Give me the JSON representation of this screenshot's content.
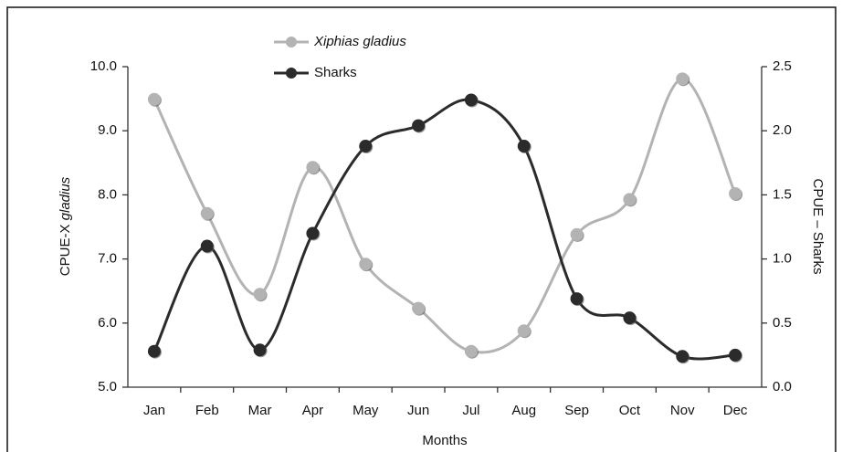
{
  "chart_data": {
    "type": "line",
    "x_label": "Months",
    "y_label": "CPUE-X gladius",
    "y2_label": "CPUE – Sharks",
    "categories": [
      "Jan",
      "Feb",
      "Mar",
      "Apr",
      "May",
      "Jun",
      "Jul",
      "Aug",
      "Sep",
      "Oct",
      "Nov",
      "Dec"
    ],
    "series": [
      {
        "name": "Xiphias gladius",
        "color": "#b3b3b3",
        "values": [
          9.49,
          7.71,
          6.45,
          8.43,
          6.92,
          6.23,
          5.56,
          5.88,
          7.38,
          7.93,
          9.81,
          8.02
        ]
      },
      {
        "name": "Sharks",
        "color": "#2b2b2b",
        "axis": "y2",
        "values": [
          0.28,
          1.1,
          0.29,
          1.2,
          1.88,
          2.04,
          2.24,
          1.88,
          0.69,
          0.54,
          0.24,
          0.25
        ]
      }
    ],
    "ylim": [
      5.0,
      10.0
    ],
    "yticks": [
      {
        "value": 5,
        "label": "5.0"
      },
      {
        "value": 6,
        "label": "6.0"
      },
      {
        "value": 7,
        "label": "7.0"
      },
      {
        "value": 8,
        "label": "8.0"
      },
      {
        "value": 9,
        "label": "9.0"
      },
      {
        "value": 10,
        "label": "10.0"
      }
    ],
    "y2lim": [
      0.0,
      2.5
    ],
    "y2ticks": [
      {
        "value": 0,
        "label": "0.0"
      },
      0.5,
      {
        "value": 1,
        "label": "1.0"
      },
      1.5,
      {
        "value": 2,
        "label": "2.0"
      },
      2.5
    ],
    "grid": false
  }
}
